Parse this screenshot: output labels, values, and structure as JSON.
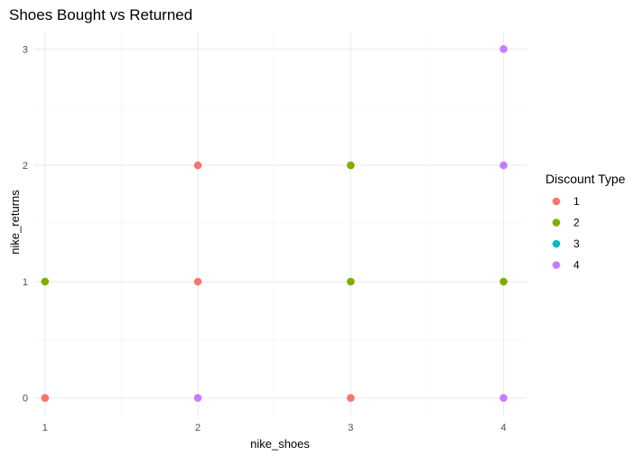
{
  "chart_data": {
    "type": "scatter",
    "title": "Shoes Bought vs Returned",
    "xlabel": "nike_shoes",
    "ylabel": "nike_returns",
    "xlim": [
      0.93,
      4.15
    ],
    "ylim": [
      -0.15,
      3.15
    ],
    "x_ticks": [
      1,
      2,
      3,
      4
    ],
    "y_ticks": [
      0,
      1,
      2,
      3
    ],
    "x_tick_labels": [
      "1",
      "2",
      "3",
      "4"
    ],
    "y_tick_labels": [
      "0",
      "1",
      "2",
      "3"
    ],
    "grid": true,
    "legend": {
      "title": "Discount Type",
      "placement": "right",
      "entries": [
        {
          "label": "1",
          "color": "#F8766D"
        },
        {
          "label": "2",
          "color": "#7CAE00"
        },
        {
          "label": "3",
          "color": "#00BFC4"
        },
        {
          "label": "4",
          "color": "#C77CFF"
        }
      ]
    },
    "points": [
      {
        "x": 1,
        "y": 0,
        "group": "1"
      },
      {
        "x": 1,
        "y": 1,
        "group": "2"
      },
      {
        "x": 2,
        "y": 0,
        "group": "4"
      },
      {
        "x": 2,
        "y": 1,
        "group": "1"
      },
      {
        "x": 2,
        "y": 2,
        "group": "1"
      },
      {
        "x": 3,
        "y": 0,
        "group": "1"
      },
      {
        "x": 3,
        "y": 1,
        "group": "2"
      },
      {
        "x": 3,
        "y": 2,
        "group": "2"
      },
      {
        "x": 4,
        "y": 0,
        "group": "4"
      },
      {
        "x": 4,
        "y": 1,
        "group": "2"
      },
      {
        "x": 4,
        "y": 2,
        "group": "4"
      },
      {
        "x": 4,
        "y": 3,
        "group": "4"
      }
    ]
  }
}
